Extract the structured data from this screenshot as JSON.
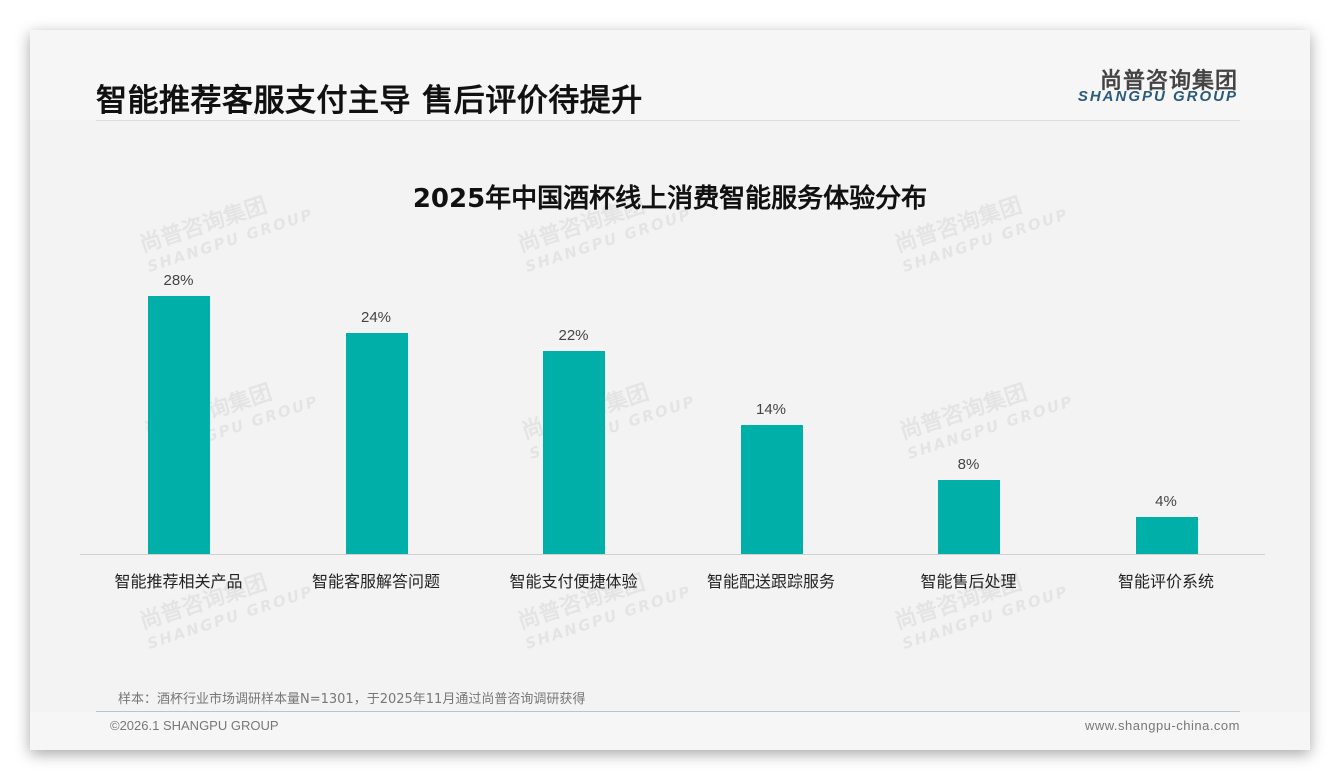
{
  "header": {
    "title": "智能推荐客服支付主导 售后评价待提升",
    "logo_cn": "尚普咨询集团",
    "logo_en": "SHANGPU GROUP"
  },
  "chart_data": {
    "type": "bar",
    "title": "2025年中国酒杯线上消费智能服务体验分布",
    "categories": [
      "智能推荐相关产品",
      "智能客服解答问题",
      "智能支付便捷体验",
      "智能配送跟踪服务",
      "智能售后处理",
      "智能评价系统"
    ],
    "values": [
      28,
      24,
      22,
      14,
      8,
      4
    ],
    "value_labels": [
      "28%",
      "24%",
      "22%",
      "14%",
      "8%",
      "4%"
    ],
    "unit": "%",
    "xlabel": "",
    "ylabel": "",
    "ylim": [
      0,
      30
    ],
    "grid": false,
    "legend": "none",
    "bar_color": "#00b0a8"
  },
  "watermark": {
    "cn": "尚普咨询集团",
    "en": "SHANGPU GROUP"
  },
  "note": "样本：酒杯行业市场调研样本量N=1301，于2025年11月通过尚普咨询调研获得",
  "footer": {
    "copyright": "©2026.1 SHANGPU GROUP",
    "url": "www.shangpu-china.com"
  }
}
